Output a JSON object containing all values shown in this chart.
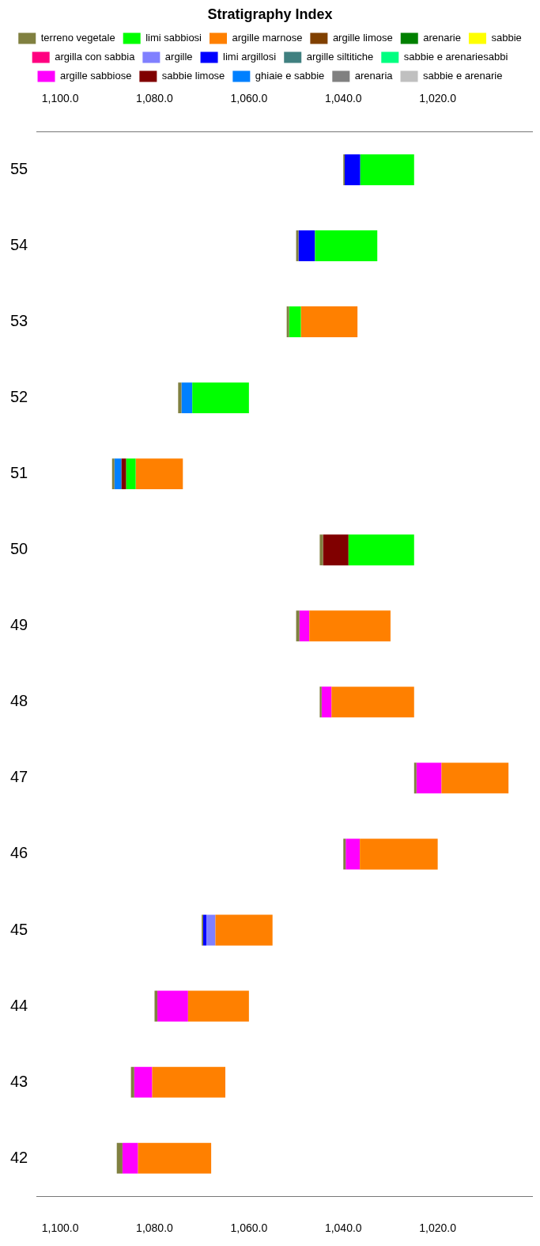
{
  "chart_data": {
    "type": "bar",
    "orientation": "horizontal",
    "legend": "top",
    "legend_title": "Stratigraphy Index",
    "categories": [
      "55",
      "54",
      "53",
      "52",
      "51",
      "50",
      "49",
      "48",
      "47",
      "46",
      "45",
      "44",
      "43",
      "42"
    ],
    "series": [
      {
        "name": "terreno vegetale",
        "color": "#808040",
        "base": [
          1039.7,
          1049.5,
          1051.5,
          1074.3,
          1088.5,
          1044.3,
          1049.3,
          1044.6,
          1024.5,
          1039.5,
          1069.7,
          1079.4,
          1084.3,
          1086.8
        ],
        "values": [
          0.3,
          0.5,
          0.5,
          0.7,
          0.5,
          0.7,
          0.7,
          0.4,
          0.5,
          0.5,
          0.3,
          0.6,
          0.7,
          1.2
        ]
      },
      {
        "name": "limi sabbiosi",
        "color": "#00ff00",
        "base": [
          1025,
          1032.8,
          1049,
          1060,
          1084,
          1025,
          null,
          null,
          null,
          null,
          null,
          null,
          null,
          null
        ],
        "values": [
          11.4,
          13.2,
          2.5,
          12,
          2,
          13.9,
          null,
          null,
          null,
          null,
          null,
          null,
          null,
          null
        ]
      },
      {
        "name": "argille marnose",
        "color": "#ff8000",
        "base": [
          null,
          null,
          1037,
          null,
          1074,
          null,
          1030,
          1025,
          1005,
          1020,
          1055,
          1060,
          1065,
          1068
        ],
        "values": [
          null,
          null,
          12,
          null,
          10,
          null,
          17.2,
          17.5,
          14.2,
          16.5,
          12.1,
          12.9,
          15.5,
          15.5
        ]
      },
      {
        "name": "argille limose",
        "color": "#804000",
        "values": [
          null,
          null,
          null,
          null,
          null,
          null,
          null,
          null,
          null,
          null,
          null,
          null,
          null,
          null
        ]
      },
      {
        "name": "arenarie",
        "color": "#008000",
        "values": [
          null,
          null,
          null,
          null,
          null,
          null,
          null,
          null,
          null,
          null,
          null,
          null,
          null,
          null
        ]
      },
      {
        "name": "sabbie",
        "color": "#ffff00",
        "values": [
          null,
          null,
          null,
          null,
          null,
          null,
          null,
          null,
          null,
          null,
          null,
          null,
          null,
          null
        ]
      },
      {
        "name": "argilla con sabbia",
        "color": "#ff0080",
        "values": [
          null,
          null,
          null,
          null,
          null,
          null,
          null,
          null,
          null,
          null,
          null,
          null,
          null,
          null
        ]
      },
      {
        "name": "argille",
        "color": "#8080ff",
        "base": [
          null,
          null,
          null,
          null,
          null,
          null,
          null,
          null,
          null,
          null,
          1067.1,
          null,
          null,
          null
        ],
        "values": [
          null,
          null,
          null,
          null,
          null,
          null,
          null,
          null,
          null,
          null,
          1.9,
          null,
          null,
          null
        ]
      },
      {
        "name": "limi argillosi",
        "color": "#0000ff",
        "base": [
          1036.4,
          1046,
          null,
          null,
          null,
          null,
          null,
          null,
          null,
          null,
          1069,
          null,
          null,
          null
        ],
        "values": [
          3.3,
          3.5,
          null,
          null,
          null,
          null,
          null,
          null,
          null,
          null,
          0.7,
          null,
          null,
          null
        ]
      },
      {
        "name": "argille siltitiche",
        "color": "#408080",
        "values": [
          null,
          null,
          null,
          null,
          null,
          null,
          null,
          null,
          null,
          null,
          null,
          null,
          null,
          null
        ]
      },
      {
        "name": "sabbie e arenariesabbi",
        "color": "#00ff80",
        "values": [
          null,
          null,
          null,
          null,
          null,
          null,
          null,
          null,
          null,
          null,
          null,
          null,
          null,
          null
        ]
      },
      {
        "name": "argille sabbiose",
        "color": "#ff00ff",
        "base": [
          null,
          null,
          null,
          null,
          null,
          null,
          1047.2,
          1042.5,
          1019.2,
          1036.5,
          null,
          1072.9,
          1080.5,
          1083.5
        ],
        "values": [
          null,
          null,
          null,
          null,
          null,
          null,
          2.1,
          2.1,
          5.3,
          3,
          null,
          6.5,
          3.8,
          3.3
        ]
      },
      {
        "name": "sabbie limose",
        "color": "#800000",
        "base": [
          null,
          null,
          null,
          null,
          1086,
          1038.9,
          null,
          null,
          null,
          null,
          null,
          null,
          null,
          null
        ],
        "values": [
          null,
          null,
          null,
          null,
          1,
          5.4,
          null,
          null,
          null,
          null,
          null,
          null,
          null,
          null
        ]
      },
      {
        "name": "ghiaie e sabbie",
        "color": "#0080ff",
        "base": [
          null,
          null,
          null,
          1072,
          1087,
          null,
          null,
          null,
          null,
          null,
          null,
          null,
          null,
          null
        ],
        "values": [
          null,
          null,
          null,
          2.3,
          1.5,
          null,
          null,
          null,
          null,
          null,
          null,
          null,
          null,
          null
        ]
      },
      {
        "name": "arenaria",
        "color": "#808080",
        "values": [
          null,
          null,
          null,
          null,
          null,
          null,
          null,
          null,
          null,
          null,
          null,
          null,
          null,
          null
        ]
      },
      {
        "name": "sabbie e arenarie",
        "color": "#c0c0c0",
        "values": [
          null,
          null,
          null,
          null,
          null,
          null,
          null,
          null,
          null,
          null,
          null,
          null,
          null,
          null
        ]
      }
    ],
    "xlim": [
      1105,
      1000
    ],
    "xticks": [
      {
        "value": 1100,
        "label": "1,100.0"
      },
      {
        "value": 1080,
        "label": "1,080.0"
      },
      {
        "value": 1060,
        "label": "1,060.0"
      },
      {
        "value": 1040,
        "label": "1,040.0"
      },
      {
        "value": 1020,
        "label": "1,020.0"
      }
    ],
    "x2lim": [
      1105,
      1000
    ],
    "x2ticks": [
      {
        "value": 1100,
        "label": "1,100.0"
      },
      {
        "value": 1080,
        "label": "1,080.0"
      },
      {
        "value": 1060,
        "label": "1,060.0"
      },
      {
        "value": 1040,
        "label": "1,040.0"
      },
      {
        "value": 1020,
        "label": "1,020.0"
      }
    ]
  }
}
